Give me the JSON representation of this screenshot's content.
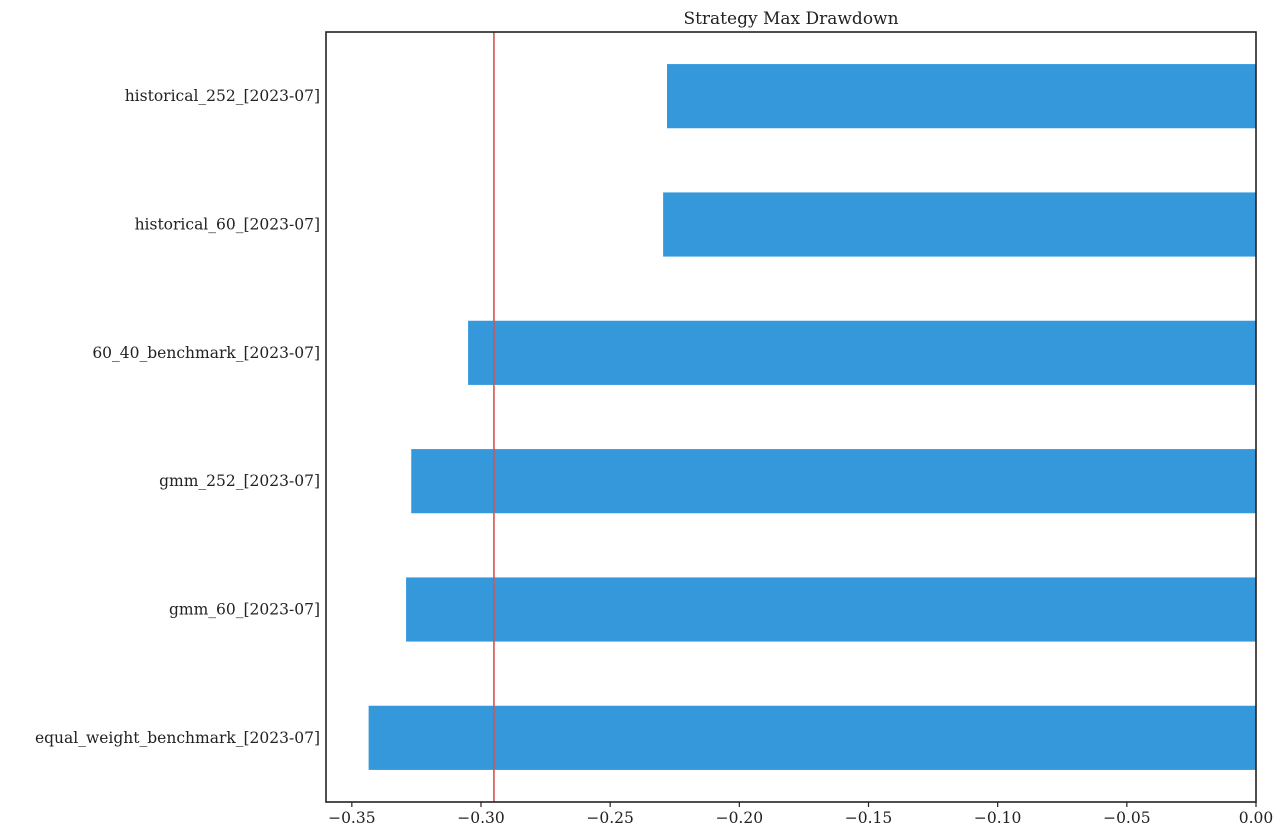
{
  "chart_data": {
    "type": "bar",
    "orientation": "horizontal",
    "title": "Strategy Max Drawdown",
    "xlabel": "",
    "ylabel": "",
    "categories": [
      "historical_252_[2023-07]",
      "historical_60_[2023-07]",
      "60_40_benchmark_[2023-07]",
      "gmm_252_[2023-07]",
      "gmm_60_[2023-07]",
      "equal_weight_benchmark_[2023-07]"
    ],
    "values": [
      -0.228,
      -0.2295,
      -0.305,
      -0.327,
      -0.329,
      -0.3435
    ],
    "xlim": [
      -0.36,
      0.0
    ],
    "xticks": [
      -0.35,
      -0.3,
      -0.25,
      -0.2,
      -0.15,
      -0.1,
      -0.05,
      0.0
    ],
    "xtick_labels": [
      "−0.35",
      "−0.30",
      "−0.25",
      "−0.20",
      "−0.15",
      "−0.10",
      "−0.05",
      "0.00"
    ],
    "reference_line": {
      "x": -0.295,
      "orientation": "vertical"
    },
    "grid": false,
    "legend": "none",
    "colors": {
      "bar": "#3498db",
      "reference_line": "#d9534f"
    }
  }
}
